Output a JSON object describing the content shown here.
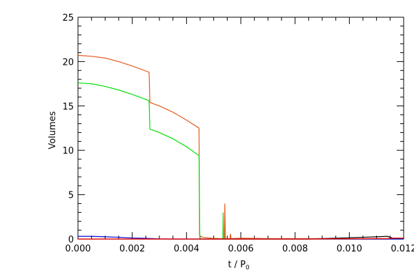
{
  "chart_data": {
    "type": "line",
    "title": "",
    "xlabel": "t / P",
    "xlabel_subscript": "0",
    "ylabel": "Volumes",
    "xlim": [
      0,
      0.012
    ],
    "ylim": [
      0,
      25
    ],
    "grid": false,
    "x_ticks": [
      "0.000",
      "0.002",
      "0.004",
      "0.006",
      "0.008",
      "0.010",
      "0.012"
    ],
    "y_ticks": [
      "0",
      "5",
      "10",
      "15",
      "20",
      "25"
    ],
    "series": [
      {
        "color": "#e25a1c",
        "points": [
          [
            0.0,
            20.7
          ],
          [
            0.0005,
            20.6
          ],
          [
            0.001,
            20.4
          ],
          [
            0.0015,
            20.0
          ],
          [
            0.002,
            19.5
          ],
          [
            0.00262,
            18.8
          ],
          [
            0.00265,
            15.4
          ],
          [
            0.003,
            15.0
          ],
          [
            0.0035,
            14.3
          ],
          [
            0.004,
            13.4
          ],
          [
            0.00446,
            12.5
          ],
          [
            0.00448,
            0.4
          ],
          [
            0.0046,
            0.2
          ],
          [
            0.0049,
            0.1
          ],
          [
            0.0052,
            0.05
          ],
          [
            0.0054,
            0.05
          ],
          [
            0.00541,
            4.0
          ],
          [
            0.00543,
            0.05
          ],
          [
            0.0056,
            0.05
          ],
          [
            0.00562,
            0.6
          ],
          [
            0.00564,
            0.05
          ],
          [
            0.006,
            0.1
          ],
          [
            0.007,
            0.05
          ],
          [
            0.008,
            0.05
          ],
          [
            0.009,
            0.05
          ],
          [
            0.01,
            0.02
          ],
          [
            0.011,
            0.02
          ],
          [
            0.012,
            0.02
          ]
        ]
      },
      {
        "color": "#00e000",
        "points": [
          [
            0.0,
            17.6
          ],
          [
            0.0005,
            17.5
          ],
          [
            0.001,
            17.2
          ],
          [
            0.0015,
            16.8
          ],
          [
            0.002,
            16.3
          ],
          [
            0.00262,
            15.6
          ],
          [
            0.00265,
            12.4
          ],
          [
            0.003,
            12.0
          ],
          [
            0.0035,
            11.3
          ],
          [
            0.004,
            10.4
          ],
          [
            0.00446,
            9.4
          ],
          [
            0.00447,
            7.0
          ],
          [
            0.00449,
            0.0
          ],
          [
            0.0052,
            0.0
          ],
          [
            0.00534,
            0.0
          ],
          [
            0.00535,
            3.0
          ],
          [
            0.00537,
            0.0
          ],
          [
            0.006,
            0.0
          ],
          [
            0.012,
            0.0
          ]
        ]
      },
      {
        "color": "#0000cc",
        "points": [
          [
            0.0,
            0.3
          ],
          [
            0.0005,
            0.3
          ],
          [
            0.001,
            0.25
          ],
          [
            0.0015,
            0.2
          ],
          [
            0.002,
            0.12
          ],
          [
            0.0025,
            0.08
          ],
          [
            0.003,
            0.02
          ],
          [
            0.0035,
            0.0
          ],
          [
            0.012,
            0.0
          ]
        ]
      },
      {
        "color": "#000000",
        "points": [
          [
            0.0,
            0.0
          ],
          [
            0.0085,
            0.0
          ],
          [
            0.009,
            0.05
          ],
          [
            0.0095,
            0.1
          ],
          [
            0.01,
            0.15
          ],
          [
            0.0105,
            0.2
          ],
          [
            0.011,
            0.25
          ],
          [
            0.0114,
            0.3
          ],
          [
            0.0116,
            0.1
          ],
          [
            0.0118,
            0.1
          ],
          [
            0.012,
            0.1
          ]
        ]
      },
      {
        "color": "#ff0000",
        "points": [
          [
            0.0,
            0.0
          ],
          [
            0.0085,
            0.0
          ],
          [
            0.009,
            0.02
          ],
          [
            0.01,
            0.03
          ],
          [
            0.011,
            0.05
          ],
          [
            0.0114,
            0.05
          ],
          [
            0.0116,
            0.1
          ],
          [
            0.012,
            0.1
          ]
        ]
      }
    ]
  }
}
